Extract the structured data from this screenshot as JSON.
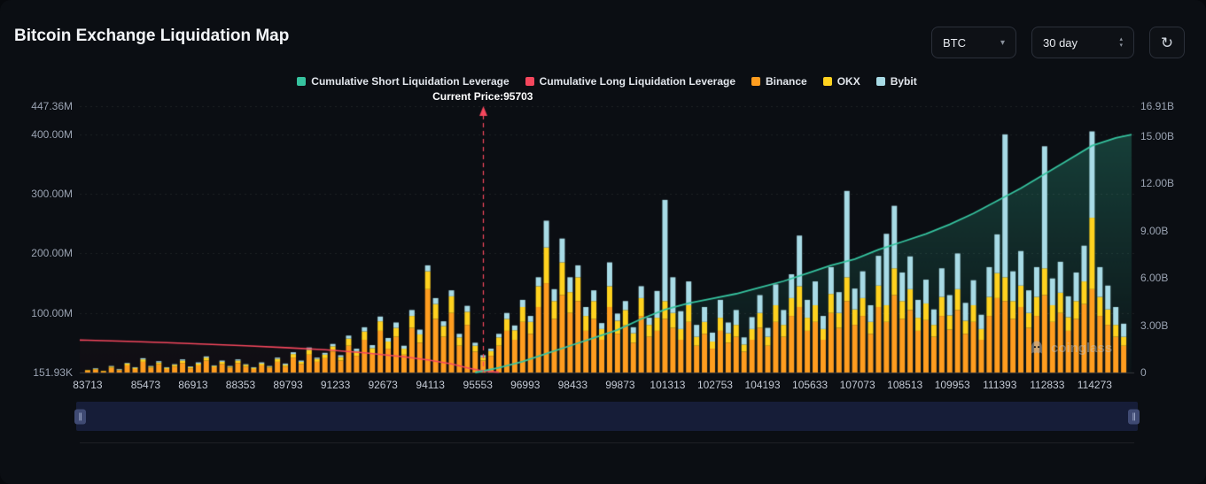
{
  "header": {
    "title": "Bitcoin Exchange Liquidation Map",
    "coin_select": {
      "value": "BTC"
    },
    "timeframe_select": {
      "value": "30 day"
    }
  },
  "icons": {
    "chevron_down": "▾",
    "stepper_up": "▴",
    "stepper_down": "▾",
    "refresh": "↻",
    "drag_handle": "∥"
  },
  "watermark": {
    "text": "coinglass"
  },
  "current_price": {
    "label": "Current Price:95703",
    "value": 95703
  },
  "colors": {
    "background": "#0b0e13",
    "short_line": "#36c39f",
    "long_line": "#f5475d",
    "binance": "#ff9d1f",
    "okx": "#ffd21f",
    "bybit": "#a8dbe6",
    "axis_text": "#9aa3b2",
    "x_axis_text": "#c3c9d4"
  },
  "legend": [
    {
      "label": "Cumulative Short Liquidation Leverage",
      "color": "#36c39f"
    },
    {
      "label": "Cumulative Long Liquidation Leverage",
      "color": "#f5475d"
    },
    {
      "label": "Binance",
      "color": "#ff9d1f"
    },
    {
      "label": "OKX",
      "color": "#ffd21f"
    },
    {
      "label": "Bybit",
      "color": "#a8dbe6"
    }
  ],
  "chart_data": {
    "type": "bar",
    "title": "Bitcoin Exchange Liquidation Map",
    "x_axis": {
      "min": 83473,
      "max": 115473,
      "tick_labels": [
        "83713",
        "85473",
        "86913",
        "88353",
        "89793",
        "91233",
        "92673",
        "94113",
        "95553",
        "96993",
        "98433",
        "99873",
        "101313",
        "102753",
        "104193",
        "105633",
        "107073",
        "108513",
        "109953",
        "111393",
        "112833",
        "114273"
      ]
    },
    "y_axis_left": {
      "unit": "M",
      "max": 447.36,
      "ticks": [
        {
          "label": "447.36M",
          "value": 447.36
        },
        {
          "label": "400.00M",
          "value": 400
        },
        {
          "label": "300.00M",
          "value": 300
        },
        {
          "label": "200.00M",
          "value": 200
        },
        {
          "label": "100.00M",
          "value": 100
        },
        {
          "label": "151.93K",
          "value": 0.15193
        }
      ]
    },
    "y_axis_right": {
      "unit": "B",
      "max": 16.91,
      "ticks": [
        {
          "label": "16.91B",
          "value": 16.91
        },
        {
          "label": "15.00B",
          "value": 15
        },
        {
          "label": "12.00B",
          "value": 12
        },
        {
          "label": "9.00B",
          "value": 9
        },
        {
          "label": "6.00B",
          "value": 6
        },
        {
          "label": "3.00B",
          "value": 3
        },
        {
          "label": "0",
          "value": 0
        }
      ]
    },
    "bars": {
      "unit": "M",
      "start": 83713,
      "step": 240,
      "series": [
        {
          "name": "Binance",
          "color": "#ff9d1f",
          "values": [
            3,
            5,
            2,
            8,
            4,
            12,
            6,
            18,
            8,
            14,
            6,
            10,
            16,
            7,
            12,
            20,
            9,
            14,
            8,
            16,
            10,
            6,
            12,
            8,
            18,
            10,
            25,
            14,
            30,
            18,
            24,
            35,
            20,
            45,
            28,
            55,
            32,
            70,
            40,
            60,
            30,
            75,
            50,
            140,
            90,
            60,
            100,
            45,
            80,
            35,
            20,
            28,
            45,
            70,
            55,
            85,
            65,
            110,
            150,
            90,
            130,
            100,
            120,
            70,
            90,
            55,
            110,
            65,
            80,
            50,
            95,
            60,
            70,
            90,
            75,
            55,
            85,
            45,
            65,
            40,
            70,
            50,
            60,
            35,
            55,
            75,
            45,
            85,
            60,
            95,
            110,
            70,
            85,
            55,
            100,
            75,
            120,
            80,
            95,
            65,
            110,
            85,
            130,
            90,
            105,
            70,
            88,
            60,
            95,
            72,
            105,
            65,
            85,
            55,
            95,
            125,
            120,
            90,
            110,
            75,
            95,
            130,
            85,
            100,
            70,
            90,
            115,
            140,
            95,
            80,
            60,
            45
          ]
        },
        {
          "name": "OKX",
          "color": "#ffd21f",
          "values": [
            1,
            1,
            1,
            2,
            1,
            3,
            2,
            4,
            2,
            3,
            2,
            3,
            4,
            2,
            3,
            5,
            2,
            4,
            2,
            4,
            3,
            2,
            3,
            2,
            5,
            3,
            6,
            4,
            8,
            5,
            6,
            9,
            6,
            12,
            8,
            14,
            9,
            16,
            12,
            15,
            10,
            20,
            14,
            30,
            25,
            18,
            28,
            14,
            22,
            10,
            6,
            8,
            14,
            20,
            16,
            25,
            20,
            35,
            60,
            30,
            55,
            35,
            40,
            25,
            30,
            18,
            35,
            22,
            25,
            16,
            30,
            20,
            22,
            30,
            25,
            18,
            28,
            15,
            20,
            12,
            22,
            16,
            20,
            12,
            18,
            25,
            15,
            28,
            20,
            30,
            35,
            22,
            28,
            18,
            32,
            25,
            40,
            26,
            30,
            20,
            36,
            28,
            45,
            30,
            35,
            22,
            28,
            20,
            32,
            24,
            35,
            22,
            28,
            18,
            32,
            42,
            40,
            30,
            36,
            25,
            32,
            45,
            28,
            34,
            23,
            30,
            38,
            120,
            32,
            26,
            20,
            15
          ]
        },
        {
          "name": "Bybit",
          "color": "#a8dbe6",
          "values": [
            0,
            1,
            0,
            1,
            1,
            1,
            1,
            2,
            1,
            2,
            1,
            1,
            2,
            1,
            2,
            2,
            1,
            2,
            1,
            2,
            1,
            1,
            2,
            1,
            2,
            2,
            3,
            2,
            4,
            2,
            3,
            4,
            3,
            5,
            4,
            7,
            5,
            8,
            6,
            9,
            5,
            10,
            8,
            10,
            10,
            8,
            10,
            6,
            10,
            5,
            3,
            4,
            6,
            10,
            8,
            12,
            10,
            15,
            45,
            20,
            40,
            25,
            20,
            15,
            18,
            10,
            40,
            12,
            15,
            10,
            20,
            12,
            45,
            170,
            60,
            30,
            40,
            20,
            25,
            15,
            30,
            18,
            25,
            12,
            20,
            30,
            15,
            35,
            25,
            40,
            85,
            30,
            40,
            22,
            45,
            35,
            145,
            35,
            45,
            28,
            50,
            120,
            105,
            48,
            55,
            30,
            40,
            26,
            48,
            34,
            60,
            30,
            42,
            24,
            50,
            65,
            240,
            50,
            58,
            38,
            50,
            205,
            45,
            52,
            35,
            48,
            60,
            145,
            50,
            40,
            30,
            22
          ]
        }
      ]
    },
    "lines": [
      {
        "name": "Cumulative Long Liquidation Leverage",
        "color": "#f5475d",
        "axis": "right",
        "unit": "B",
        "points": [
          [
            83473,
            2.06
          ],
          [
            83713,
            2.05
          ],
          [
            84913,
            1.98
          ],
          [
            86113,
            1.9
          ],
          [
            87313,
            1.8
          ],
          [
            88513,
            1.7
          ],
          [
            89713,
            1.58
          ],
          [
            90913,
            1.45
          ],
          [
            92113,
            1.25
          ],
          [
            93313,
            1.0
          ],
          [
            94033,
            0.8
          ],
          [
            94753,
            0.55
          ],
          [
            95233,
            0.3
          ],
          [
            95713,
            0.1
          ],
          [
            96193,
            0.02
          ]
        ]
      },
      {
        "name": "Cumulative Short Liquidation Leverage",
        "color": "#36c39f",
        "axis": "right",
        "unit": "B",
        "points": [
          [
            95473,
            0
          ],
          [
            96193,
            0.3
          ],
          [
            96913,
            0.7
          ],
          [
            97633,
            1.2
          ],
          [
            98353,
            1.7
          ],
          [
            99073,
            2.2
          ],
          [
            99793,
            2.7
          ],
          [
            100513,
            3.4
          ],
          [
            101233,
            4.0
          ],
          [
            101953,
            4.4
          ],
          [
            102673,
            4.7
          ],
          [
            103393,
            5.0
          ],
          [
            104113,
            5.4
          ],
          [
            104833,
            5.8
          ],
          [
            105553,
            6.3
          ],
          [
            106273,
            6.8
          ],
          [
            106993,
            7.2
          ],
          [
            107713,
            7.8
          ],
          [
            108433,
            8.3
          ],
          [
            109153,
            8.8
          ],
          [
            109873,
            9.4
          ],
          [
            110593,
            10.1
          ],
          [
            111313,
            10.9
          ],
          [
            112033,
            11.7
          ],
          [
            112753,
            12.6
          ],
          [
            113473,
            13.5
          ],
          [
            114193,
            14.4
          ],
          [
            114913,
            14.9
          ],
          [
            115393,
            15.1
          ]
        ]
      }
    ],
    "legend_position": "top",
    "grid": true
  }
}
